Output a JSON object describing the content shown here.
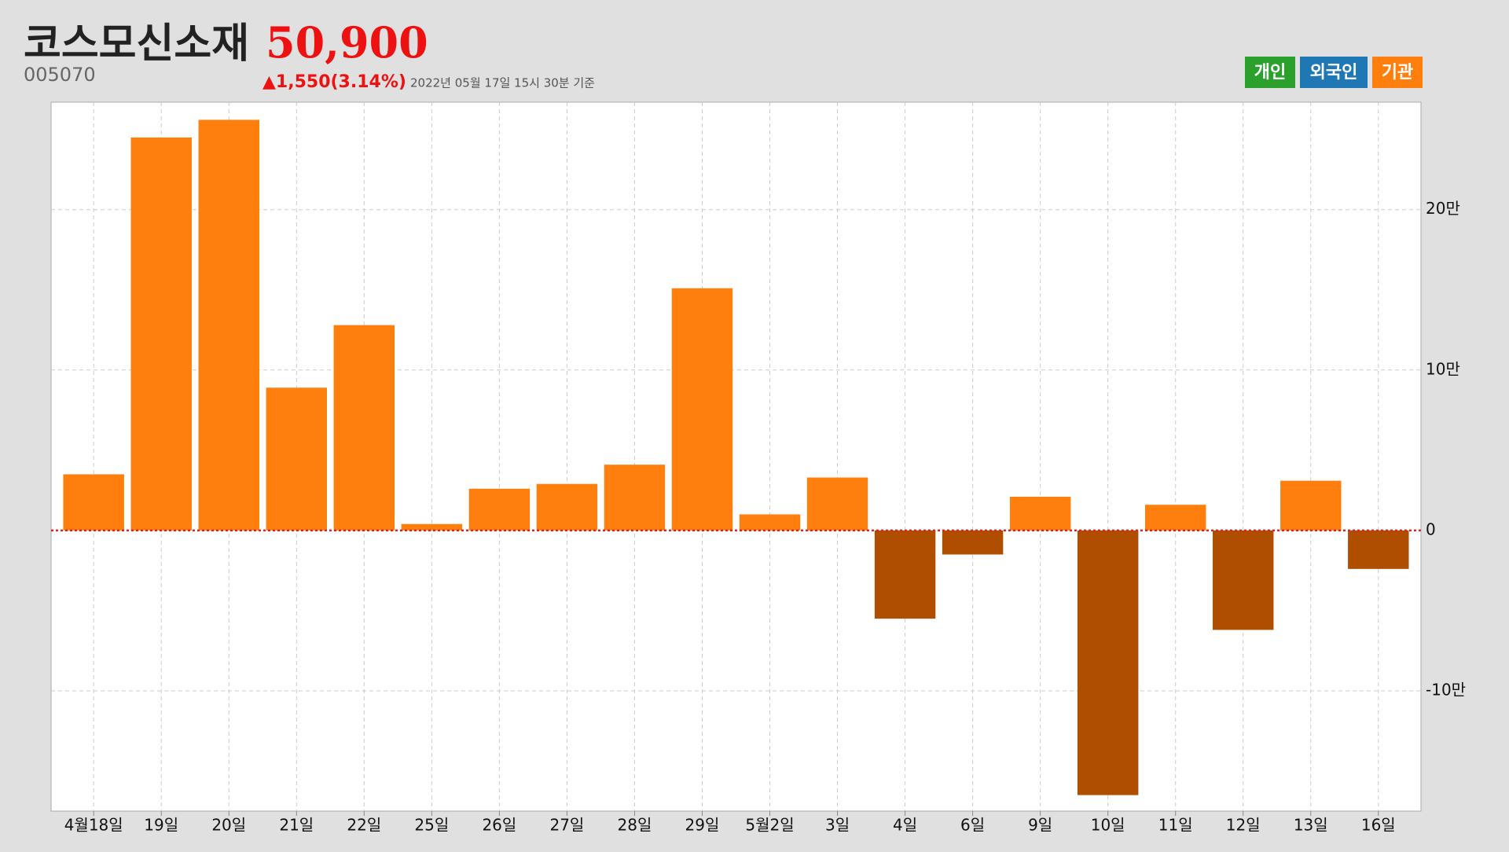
{
  "header": {
    "title": "코스모신소재",
    "price": "50,900",
    "code": "005070",
    "change": "▲1,550(3.14%)",
    "timestamp": "2022년 05월 17일 15시 30분 기준"
  },
  "legend": [
    {
      "name": "개인",
      "color": "#2ca02c"
    },
    {
      "name": "외국인",
      "color": "#1f77b4"
    },
    {
      "name": "기관",
      "color": "#ff7f0e"
    }
  ],
  "chart_data": {
    "type": "bar",
    "categories": [
      "4월18일",
      "19일",
      "20일",
      "21일",
      "22일",
      "25일",
      "26일",
      "27일",
      "28일",
      "29일",
      "5월2일",
      "3일",
      "4일",
      "6일",
      "9일",
      "10일",
      "11일",
      "12일",
      "13일",
      "16일"
    ],
    "values": [
      35000,
      245000,
      256000,
      89000,
      128000,
      4000,
      26000,
      29000,
      41000,
      151000,
      10000,
      33000,
      -55000,
      -15000,
      21000,
      -165000,
      16000,
      -62000,
      31000,
      -24000
    ],
    "color": "#ff7f0e",
    "negative_color": "#b04e00",
    "ylim": [
      -175000,
      267000
    ],
    "yticks": [
      {
        "value": -100000,
        "label": "-10만"
      },
      0,
      {
        "value": 100000,
        "label": "10만"
      },
      {
        "value": 200000,
        "label": "20만"
      }
    ],
    "grid": true
  }
}
